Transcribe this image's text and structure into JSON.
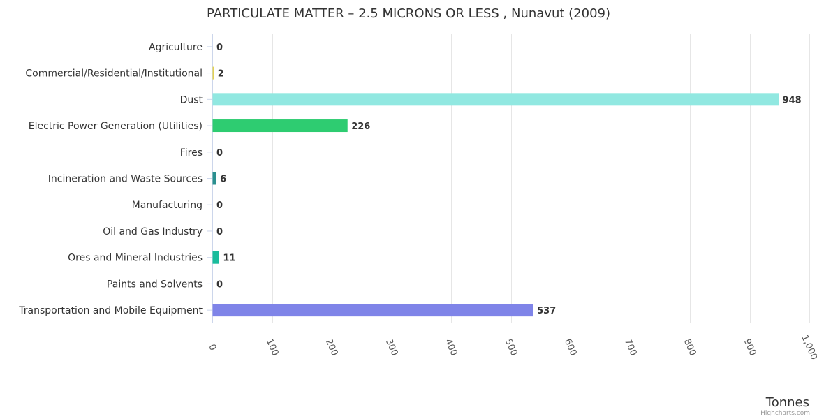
{
  "chart_data": {
    "type": "bar",
    "orientation": "horizontal",
    "title": "PARTICULATE MATTER – 2.5 MICRONS OR LESS , Nunavut (2009)",
    "xlabel": "Tonnes",
    "ylabel": "",
    "xlim": [
      0,
      1000
    ],
    "ticks": [
      0,
      100,
      200,
      300,
      400,
      500,
      600,
      700,
      800,
      900,
      1000
    ],
    "tick_labels": [
      "0",
      "100",
      "200",
      "300",
      "400",
      "500",
      "600",
      "700",
      "800",
      "900",
      "1,000"
    ],
    "grid": true,
    "categories": [
      "Agriculture",
      "Commercial/Residential/Institutional",
      "Dust",
      "Electric Power Generation (Utilities)",
      "Fires",
      "Incineration and Waste Sources",
      "Manufacturing",
      "Oil and Gas Industry",
      "Ores and Mineral Industries",
      "Paints and Solvents",
      "Transportation and Mobile Equipment"
    ],
    "values": [
      0,
      2,
      948,
      226,
      0,
      6,
      0,
      0,
      11,
      0,
      537
    ],
    "colors": [
      "#f45b5b",
      "#e4d354",
      "#91e8e1",
      "#2ecc71",
      "#f7a35c",
      "#2b908f",
      "#8085e9",
      "#f15c80",
      "#1abc9c",
      "#90ed7d",
      "#7f84e8"
    ]
  },
  "credits": "Highcharts.com"
}
